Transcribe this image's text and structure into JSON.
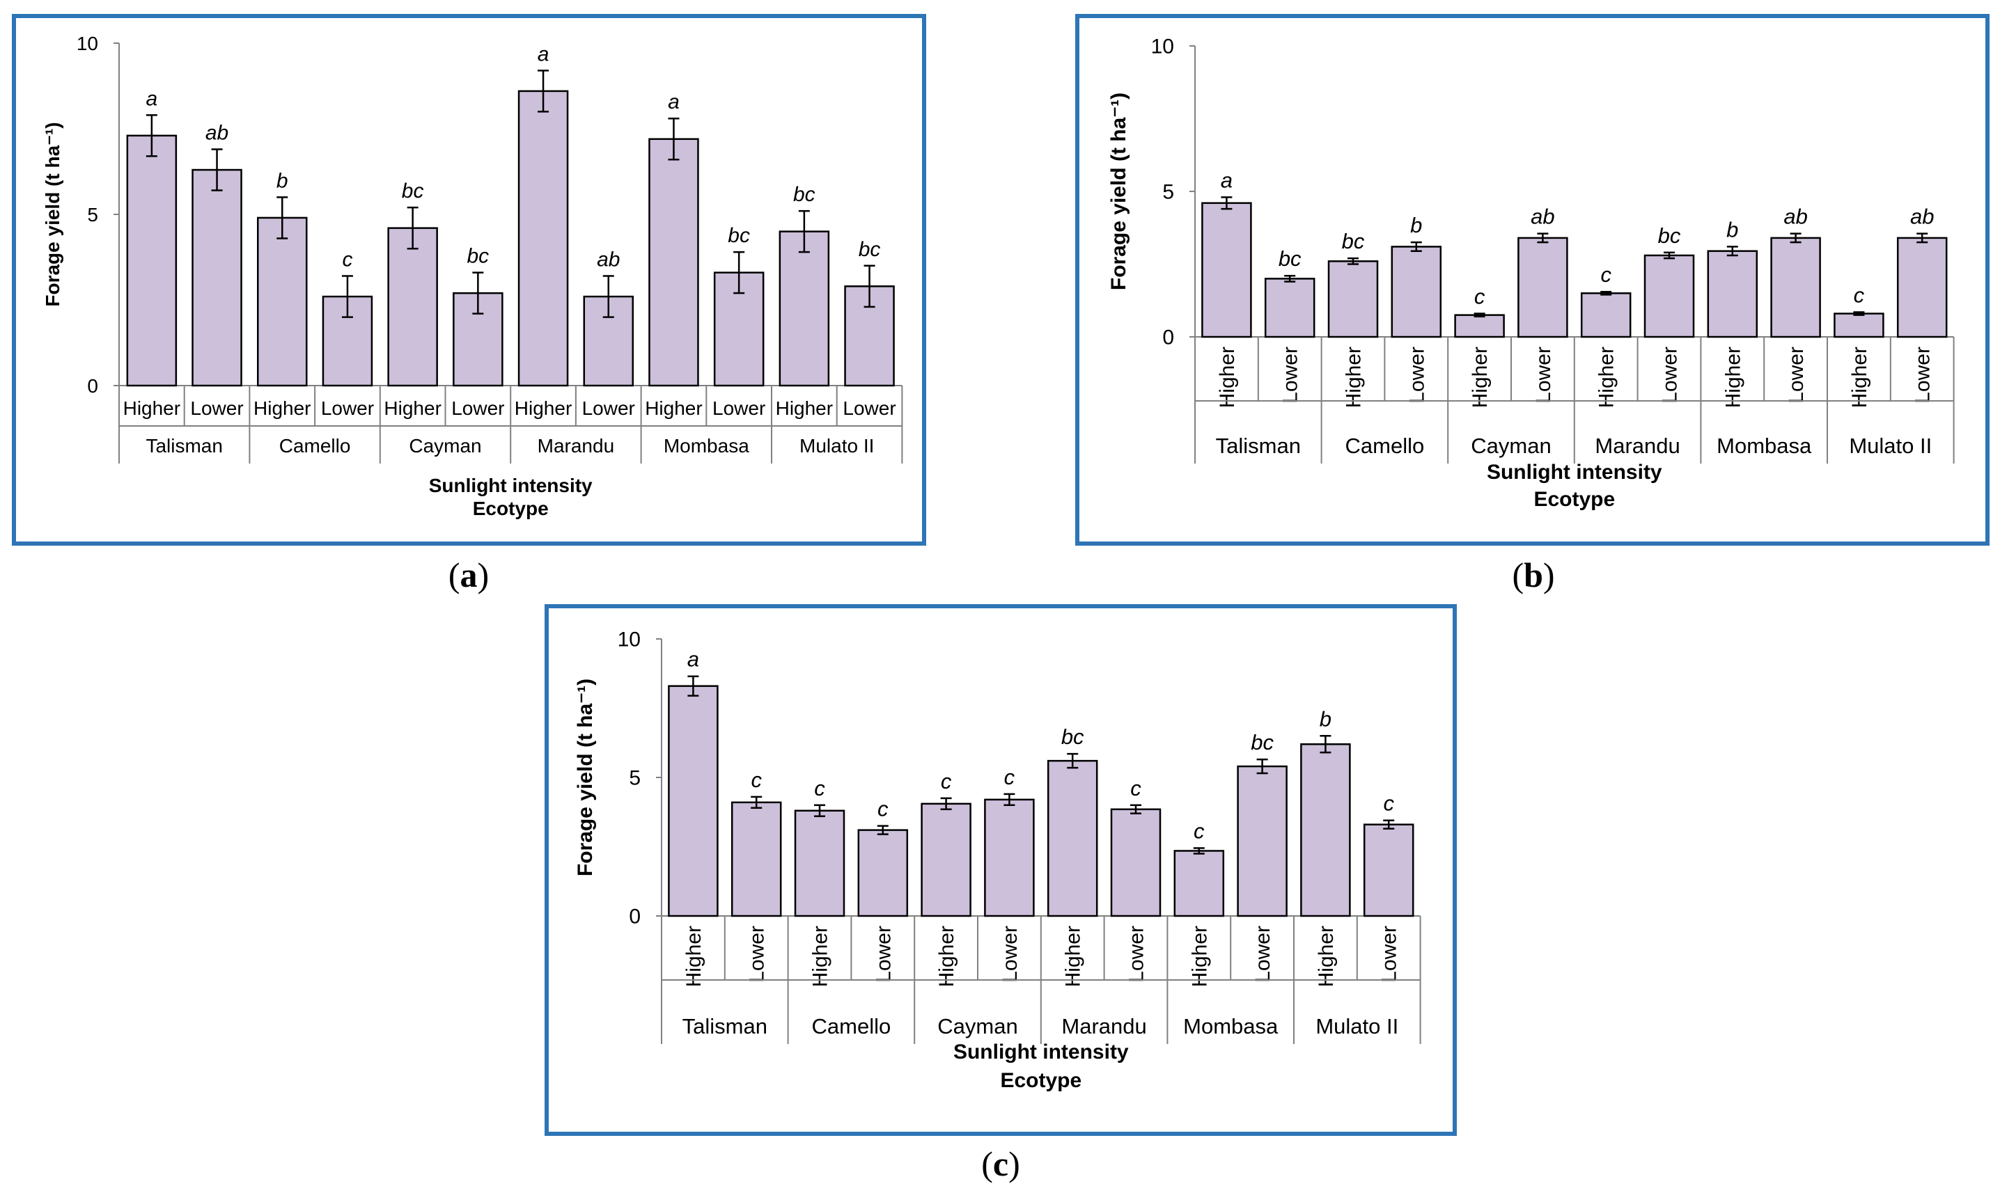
{
  "colors": {
    "bar": "#ccc0da",
    "bar_outline": "#000000",
    "frame": "#2e75b6",
    "axis": "#808080"
  },
  "captions": {
    "a": "a",
    "b": "b",
    "c": "c"
  },
  "chart_data": [
    {
      "panel": "a",
      "type": "bar",
      "title": "",
      "ylabel": "Forage yield (t ha⁻¹)",
      "xlabel_line1": "Sunlight intensity",
      "xlabel_line2": "Ecotype",
      "ylim": [
        0,
        10
      ],
      "yticks": [
        "0",
        "5",
        "10"
      ],
      "label_orientation": "horizontal",
      "groups": [
        "Talisman",
        "Camello",
        "Cayman",
        "Marandu",
        "Mombasa",
        "Mulato II"
      ],
      "categories": [
        "Higher",
        "Lower",
        "Higher",
        "Lower",
        "Higher",
        "Lower",
        "Higher",
        "Lower",
        "Higher",
        "Lower",
        "Higher",
        "Lower"
      ],
      "values": [
        7.3,
        6.3,
        4.9,
        2.6,
        4.6,
        2.7,
        8.6,
        2.6,
        7.2,
        3.3,
        4.5,
        2.9
      ],
      "errors": [
        0.6,
        0.6,
        0.6,
        0.6,
        0.6,
        0.6,
        0.6,
        0.6,
        0.6,
        0.6,
        0.6,
        0.6
      ],
      "letters": [
        "a",
        "ab",
        "b",
        "c",
        "bc",
        "bc",
        "a",
        "ab",
        "a",
        "bc",
        "bc",
        "bc"
      ]
    },
    {
      "panel": "b",
      "type": "bar",
      "title": "",
      "ylabel": "Forage yield (t ha⁻¹)",
      "xlabel_line1": "Sunlight intensity",
      "xlabel_line2": "Ecotype",
      "ylim": [
        0,
        10
      ],
      "yticks": [
        "0",
        "5",
        "10"
      ],
      "label_orientation": "vertical",
      "groups": [
        "Talisman",
        "Camello",
        "Cayman",
        "Marandu",
        "Mombasa",
        "Mulato II"
      ],
      "categories": [
        "Higher",
        "Lower",
        "Higher",
        "Lower",
        "Higher",
        "Lower",
        "Higher",
        "Lower",
        "Higher",
        "Lower",
        "Higher",
        "Lower"
      ],
      "values": [
        4.6,
        2.0,
        2.6,
        3.1,
        0.75,
        3.4,
        1.5,
        2.8,
        2.95,
        3.4,
        0.8,
        3.4
      ],
      "errors": [
        0.2,
        0.1,
        0.1,
        0.15,
        0.05,
        0.15,
        0.05,
        0.1,
        0.15,
        0.15,
        0.05,
        0.15
      ],
      "letters": [
        "a",
        "bc",
        "bc",
        "b",
        "c",
        "ab",
        "c",
        "bc",
        "b",
        "ab",
        "c",
        "ab"
      ]
    },
    {
      "panel": "c",
      "type": "bar",
      "title": "",
      "ylabel": "Forage yield (t ha⁻¹)",
      "xlabel_line1": "Sunlight intensity",
      "xlabel_line2": "Ecotype",
      "ylim": [
        0,
        10
      ],
      "yticks": [
        "0",
        "5",
        "10"
      ],
      "label_orientation": "vertical",
      "groups": [
        "Talisman",
        "Camello",
        "Cayman",
        "Marandu",
        "Mombasa",
        "Mulato II"
      ],
      "categories": [
        "Higher",
        "Lower",
        "Higher",
        "Lower",
        "Higher",
        "Lower",
        "Higher",
        "Lower",
        "Higher",
        "Lower",
        "Higher",
        "Lower"
      ],
      "values": [
        8.3,
        4.1,
        3.8,
        3.1,
        4.05,
        4.2,
        5.6,
        3.85,
        2.35,
        5.4,
        6.2,
        3.3
      ],
      "errors": [
        0.35,
        0.2,
        0.2,
        0.15,
        0.2,
        0.2,
        0.25,
        0.15,
        0.1,
        0.25,
        0.3,
        0.15
      ],
      "letters": [
        "a",
        "c",
        "c",
        "c",
        "c",
        "c",
        "bc",
        "c",
        "c",
        "bc",
        "b",
        "c"
      ]
    }
  ]
}
